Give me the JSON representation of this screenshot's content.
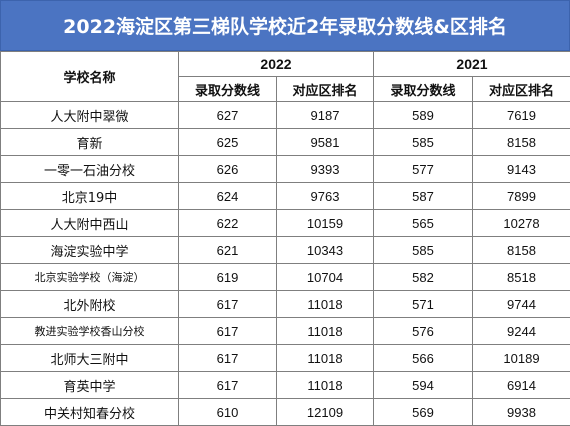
{
  "title": "2022海淀区第三梯队学校近2年录取分数线&区排名",
  "header": {
    "school_col": "学校名称",
    "years": [
      "2022",
      "2021"
    ],
    "score_label": "录取分数线",
    "rank_label": "对应区排名"
  },
  "colors": {
    "title_bg": "#4b74c2",
    "title_text": "#ffffff",
    "grid": "#7f7f7f"
  },
  "rows": [
    {
      "school": "人大附中翠微",
      "s2022": "627",
      "r2022": "9187",
      "s2021": "589",
      "r2021": "7619"
    },
    {
      "school": "育新",
      "s2022": "625",
      "r2022": "9581",
      "s2021": "585",
      "r2021": "8158"
    },
    {
      "school": "一零一石油分校",
      "s2022": "626",
      "r2022": "9393",
      "s2021": "577",
      "r2021": "9143"
    },
    {
      "school": "北京19中",
      "s2022": "624",
      "r2022": "9763",
      "s2021": "587",
      "r2021": "7899"
    },
    {
      "school": "人大附中西山",
      "s2022": "622",
      "r2022": "10159",
      "s2021": "565",
      "r2021": "10278"
    },
    {
      "school": "海淀实验中学",
      "s2022": "621",
      "r2022": "10343",
      "s2021": "585",
      "r2021": "8158"
    },
    {
      "school": "北京实验学校（海淀）",
      "s2022": "619",
      "r2022": "10704",
      "s2021": "582",
      "r2021": "8518"
    },
    {
      "school": "北外附校",
      "s2022": "617",
      "r2022": "11018",
      "s2021": "571",
      "r2021": "9744"
    },
    {
      "school": "教进实验学校香山分校",
      "s2022": "617",
      "r2022": "11018",
      "s2021": "576",
      "r2021": "9244"
    },
    {
      "school": "北师大三附中",
      "s2022": "617",
      "r2022": "11018",
      "s2021": "566",
      "r2021": "10189"
    },
    {
      "school": "育英中学",
      "s2022": "617",
      "r2022": "11018",
      "s2021": "594",
      "r2021": "6914"
    },
    {
      "school": "中关村知春分校",
      "s2022": "610",
      "r2022": "12109",
      "s2021": "569",
      "r2021": "9938"
    }
  ]
}
